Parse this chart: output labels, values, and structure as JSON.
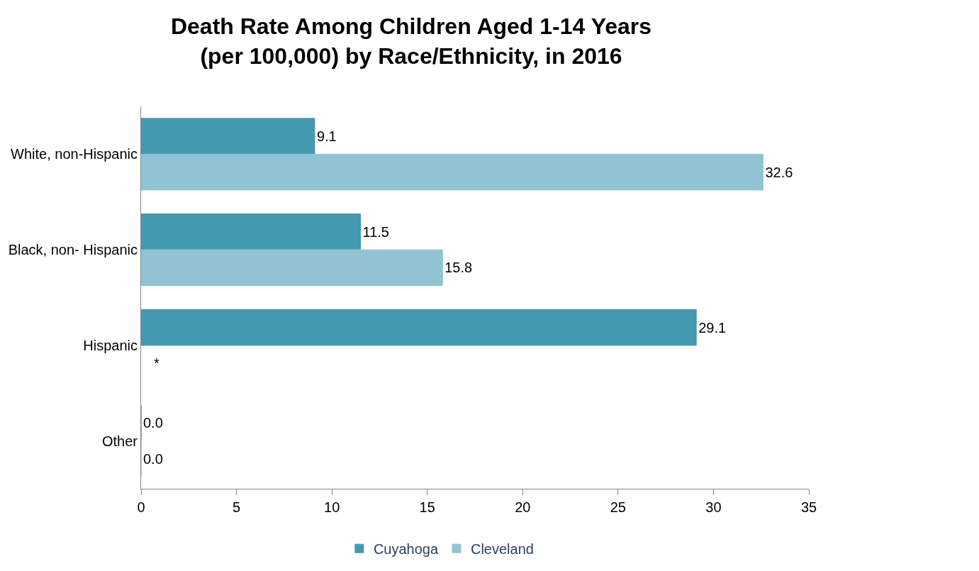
{
  "chart_data": {
    "type": "bar",
    "orientation": "horizontal",
    "title": "Death Rate Among Children Aged 1-14 Years\n(per 100,000) by Race/Ethnicity, in 2016",
    "categories": [
      "White, non-Hispanic",
      "Black, non- Hispanic",
      "Hispanic",
      "Other"
    ],
    "series": [
      {
        "name": "Cuyahoga",
        "color": "#4399b0",
        "values": [
          9.1,
          11.5,
          29.1,
          0.0
        ],
        "value_labels": [
          "9.1",
          "11.5",
          "29.1",
          "0.0"
        ]
      },
      {
        "name": "Cleveland",
        "color": "#92c3d4",
        "values": [
          32.6,
          15.8,
          null,
          0.0
        ],
        "value_labels": [
          "32.6",
          "15.8",
          "*",
          "0.0"
        ]
      }
    ],
    "xlim": [
      0,
      35
    ],
    "xticks": [
      0,
      5,
      10,
      15,
      20,
      25,
      30,
      35
    ],
    "legend": "bottom"
  }
}
